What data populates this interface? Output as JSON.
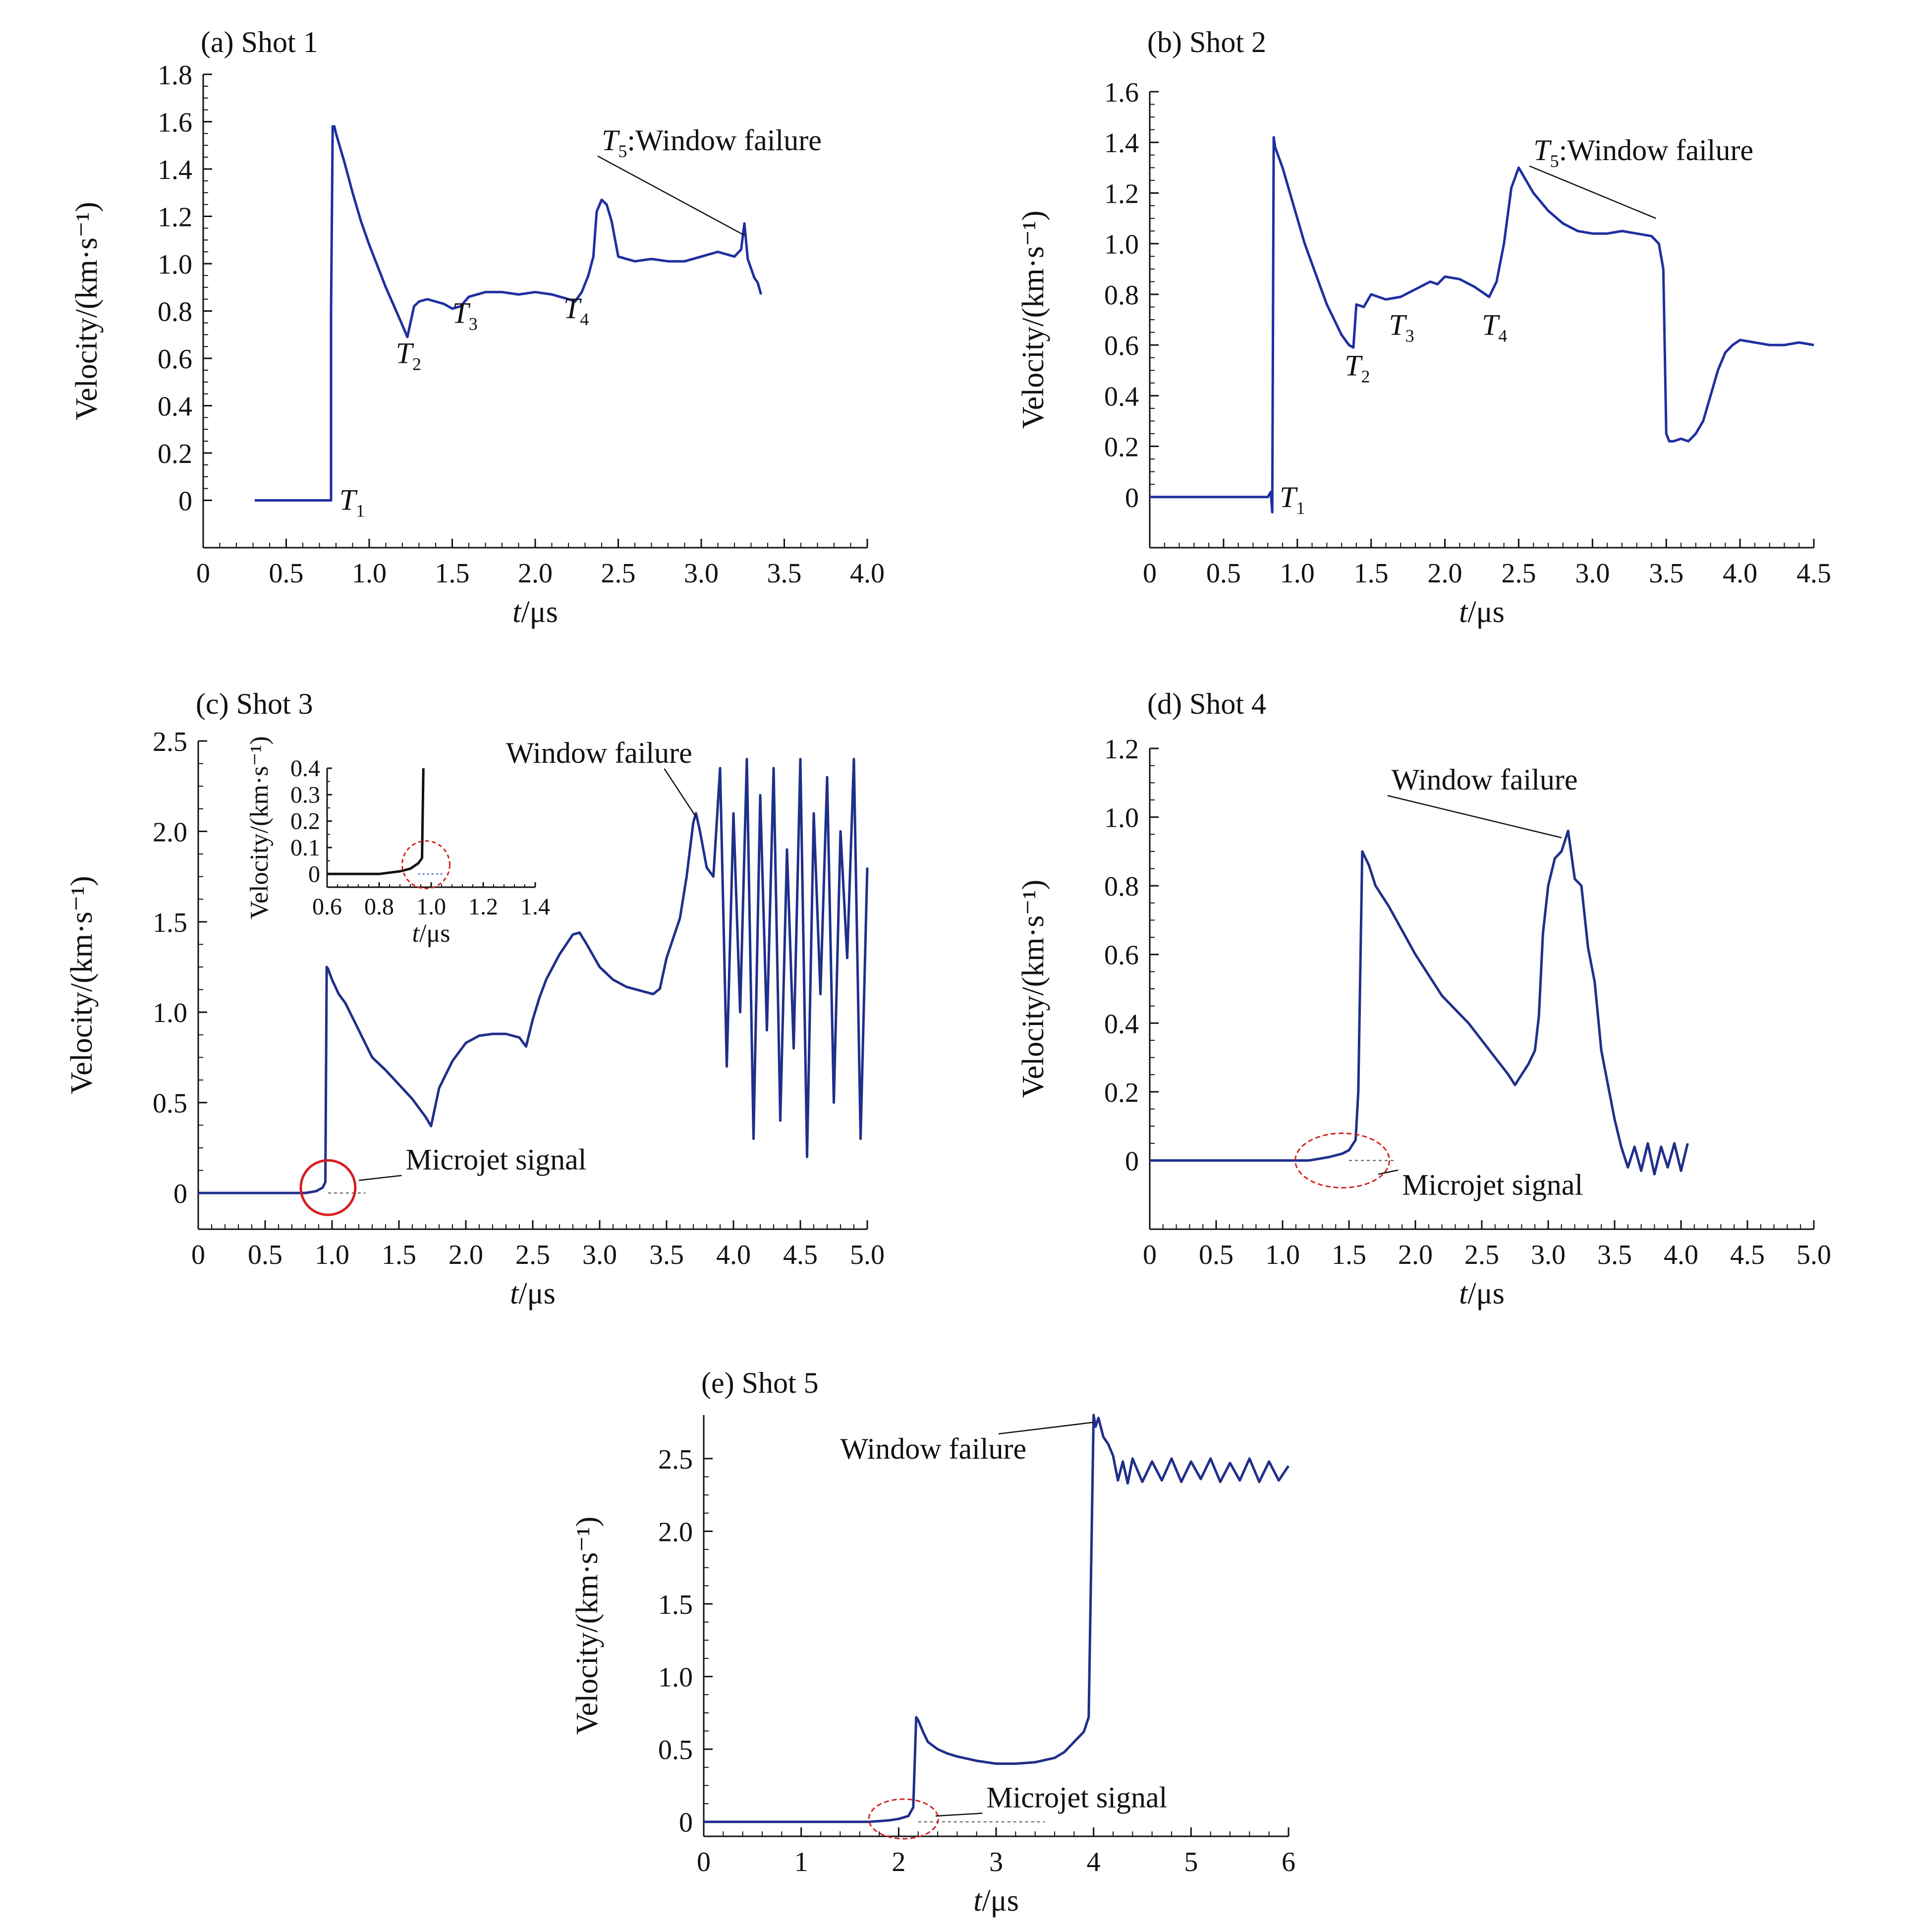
{
  "chart_data": [
    {
      "id": "a",
      "type": "line",
      "title": "(a) Shot 1",
      "xlabel": "t/μs",
      "ylabel": "Velocity/(km·s⁻¹)",
      "xlim": [
        0,
        4.0
      ],
      "ylim": [
        -0.2,
        1.8
      ],
      "xticks": [
        0,
        0.5,
        1.0,
        1.5,
        2.0,
        2.5,
        3.0,
        3.5,
        4.0
      ],
      "xtick_labels": [
        "0",
        "0.5",
        "1.0",
        "1.5",
        "2.0",
        "2.5",
        "3.0",
        "3.5",
        "4.0"
      ],
      "yticks": [
        0,
        0.2,
        0.4,
        0.6,
        0.8,
        1.0,
        1.2,
        1.4,
        1.6,
        1.8
      ],
      "ytick_labels": [
        "0",
        "0.2",
        "0.4",
        "0.6",
        "0.8",
        "1.0",
        "1.2",
        "1.4",
        "1.6",
        "1.8"
      ],
      "color": "#1f2fa0",
      "series": [
        {
          "x": [
            0.31,
            0.77,
            0.77,
            0.78,
            0.79,
            0.8,
            0.85,
            0.9,
            0.95,
            1.0,
            1.05,
            1.1,
            1.15,
            1.2,
            1.23,
            1.27,
            1.3,
            1.35,
            1.4,
            1.45,
            1.5,
            1.55,
            1.6,
            1.7,
            1.8,
            1.9,
            2.0,
            2.1,
            2.2,
            2.24,
            2.28,
            2.32,
            2.35,
            2.37,
            2.4,
            2.43,
            2.46,
            2.5,
            2.6,
            2.7,
            2.8,
            2.9,
            3.0,
            3.1,
            3.2,
            3.24,
            3.26,
            3.28,
            3.3,
            3.32,
            3.34,
            3.36
          ],
          "y": [
            0.0,
            0.0,
            0.8,
            1.58,
            1.58,
            1.55,
            1.43,
            1.3,
            1.18,
            1.08,
            0.99,
            0.9,
            0.82,
            0.74,
            0.69,
            0.82,
            0.84,
            0.85,
            0.84,
            0.83,
            0.81,
            0.82,
            0.86,
            0.88,
            0.88,
            0.87,
            0.88,
            0.87,
            0.85,
            0.84,
            0.88,
            0.95,
            1.03,
            1.22,
            1.27,
            1.25,
            1.18,
            1.03,
            1.01,
            1.02,
            1.01,
            1.01,
            1.03,
            1.05,
            1.03,
            1.06,
            1.17,
            1.02,
            0.98,
            0.94,
            0.92,
            0.87
          ]
        }
      ],
      "annotations": [
        {
          "text": "T",
          "sub": "1",
          "at": [
            0.82,
            -0.04
          ]
        },
        {
          "text": "T",
          "sub": "2",
          "at": [
            1.16,
            0.58
          ]
        },
        {
          "text": "T",
          "sub": "3",
          "at": [
            1.5,
            0.75
          ]
        },
        {
          "text": "T",
          "sub": "4",
          "at": [
            2.17,
            0.77
          ]
        },
        {
          "text": "T",
          "sub": "5",
          "suffix": ":Window failure",
          "at": [
            2.4,
            1.48
          ],
          "arrow_to": [
            3.26,
            1.12
          ]
        }
      ]
    },
    {
      "id": "b",
      "type": "line",
      "title": "(b) Shot 2",
      "xlabel": "t/μs",
      "ylabel": "Velocity/(km·s⁻¹)",
      "xlim": [
        0,
        4.5
      ],
      "ylim": [
        -0.2,
        1.6
      ],
      "xticks": [
        0,
        0.5,
        1.0,
        1.5,
        2.0,
        2.5,
        3.0,
        3.5,
        4.0,
        4.5
      ],
      "xtick_labels": [
        "0",
        "0.5",
        "1.0",
        "1.5",
        "2.0",
        "2.5",
        "3.0",
        "3.5",
        "4.0",
        "4.5"
      ],
      "yticks": [
        0,
        0.2,
        0.4,
        0.6,
        0.8,
        1.0,
        1.2,
        1.4,
        1.6
      ],
      "ytick_labels": [
        "0",
        "0.2",
        "0.4",
        "0.6",
        "0.8",
        "1.0",
        "1.2",
        "1.4",
        "1.6"
      ],
      "color": "#1f2fa0",
      "series": [
        {
          "x": [
            0.0,
            0.8,
            0.82,
            0.83,
            0.84,
            0.85,
            0.9,
            0.95,
            1.0,
            1.05,
            1.1,
            1.15,
            1.2,
            1.25,
            1.3,
            1.35,
            1.38,
            1.4,
            1.45,
            1.5,
            1.6,
            1.7,
            1.8,
            1.9,
            1.95,
            2.0,
            2.1,
            2.2,
            2.3,
            2.35,
            2.4,
            2.45,
            2.5,
            2.55,
            2.6,
            2.7,
            2.8,
            2.9,
            3.0,
            3.1,
            3.2,
            3.3,
            3.4,
            3.45,
            3.48,
            3.5,
            3.52,
            3.55,
            3.6,
            3.65,
            3.7,
            3.75,
            3.8,
            3.85,
            3.9,
            3.95,
            4.0,
            4.1,
            4.2,
            4.3,
            4.4,
            4.5
          ],
          "y": [
            0.0,
            0.0,
            0.02,
            -0.06,
            1.42,
            1.38,
            1.3,
            1.2,
            1.1,
            1.0,
            0.92,
            0.84,
            0.76,
            0.7,
            0.64,
            0.6,
            0.59,
            0.76,
            0.75,
            0.8,
            0.78,
            0.79,
            0.82,
            0.85,
            0.84,
            0.87,
            0.86,
            0.83,
            0.79,
            0.85,
            1.0,
            1.22,
            1.3,
            1.25,
            1.2,
            1.13,
            1.08,
            1.05,
            1.04,
            1.04,
            1.05,
            1.04,
            1.03,
            1.0,
            0.9,
            0.25,
            0.22,
            0.22,
            0.23,
            0.22,
            0.25,
            0.3,
            0.4,
            0.5,
            0.57,
            0.6,
            0.62,
            0.61,
            0.6,
            0.6,
            0.61,
            0.6
          ]
        }
      ],
      "annotations": [
        {
          "text": "T",
          "sub": "1",
          "at": [
            0.88,
            -0.04
          ]
        },
        {
          "text": "T",
          "sub": "2",
          "at": [
            1.32,
            0.48
          ]
        },
        {
          "text": "T",
          "sub": "3",
          "at": [
            1.62,
            0.64
          ]
        },
        {
          "text": "T",
          "sub": "4",
          "at": [
            2.25,
            0.64
          ]
        },
        {
          "text": "T",
          "sub": "5",
          "suffix": ":Window failure",
          "at": [
            2.6,
            1.33
          ],
          "arrow_to": [
            3.43,
            1.1
          ]
        }
      ]
    },
    {
      "id": "c",
      "type": "line",
      "title": "(c) Shot 3",
      "xlabel": "t/μs",
      "ylabel": "Velocity/(km·s⁻¹)",
      "xlim": [
        0,
        5.0
      ],
      "ylim": [
        -0.2,
        2.5
      ],
      "xticks": [
        0,
        0.5,
        1.0,
        1.5,
        2.0,
        2.5,
        3.0,
        3.5,
        4.0,
        4.5,
        5.0
      ],
      "xtick_labels": [
        "0",
        "0.5",
        "1.0",
        "1.5",
        "2.0",
        "2.5",
        "3.0",
        "3.5",
        "4.0",
        "4.5",
        "5.0"
      ],
      "yticks": [
        0,
        0.5,
        1.0,
        1.5,
        2.0,
        2.5
      ],
      "ytick_labels": [
        "0",
        "0.5",
        "1.0",
        "1.5",
        "2.0",
        "2.5"
      ],
      "color": "#1f2f8a",
      "series": [
        {
          "x": [
            0.0,
            0.8,
            0.88,
            0.93,
            0.95,
            0.96,
            0.97,
            1.0,
            1.05,
            1.1,
            1.2,
            1.3,
            1.4,
            1.5,
            1.6,
            1.7,
            1.74,
            1.8,
            1.9,
            2.0,
            2.1,
            2.2,
            2.3,
            2.4,
            2.45,
            2.5,
            2.55,
            2.6,
            2.7,
            2.8,
            2.85,
            2.9,
            3.0,
            3.1,
            3.2,
            3.3,
            3.4,
            3.45,
            3.5,
            3.6,
            3.65,
            3.7,
            3.72,
            3.75,
            3.8,
            3.85,
            3.9,
            3.95,
            4.0,
            4.05,
            4.1,
            4.15,
            4.2,
            4.25,
            4.3,
            4.35,
            4.4,
            4.45,
            4.5,
            4.55,
            4.6,
            4.65,
            4.7,
            4.75,
            4.8,
            4.85,
            4.9,
            4.95,
            5.0
          ],
          "y": [
            0.0,
            0.0,
            0.01,
            0.03,
            0.06,
            1.25,
            1.24,
            1.18,
            1.1,
            1.05,
            0.9,
            0.75,
            0.68,
            0.6,
            0.52,
            0.42,
            0.37,
            0.58,
            0.73,
            0.83,
            0.87,
            0.88,
            0.88,
            0.86,
            0.81,
            0.96,
            1.08,
            1.18,
            1.32,
            1.43,
            1.44,
            1.38,
            1.25,
            1.18,
            1.14,
            1.12,
            1.1,
            1.13,
            1.3,
            1.52,
            1.75,
            2.05,
            2.1,
            2.0,
            1.8,
            1.75,
            2.35,
            0.7,
            2.1,
            1.0,
            2.4,
            0.3,
            2.2,
            0.9,
            2.35,
            0.4,
            1.9,
            0.8,
            2.4,
            0.2,
            2.1,
            1.1,
            2.3,
            0.5,
            2.0,
            1.3,
            2.4,
            0.3,
            1.8
          ]
        }
      ],
      "annotations": [
        {
          "text": "Window failure",
          "at": [
            2.3,
            2.38
          ],
          "arrow_to": [
            3.72,
            2.08
          ]
        },
        {
          "text": "Microjet signal",
          "at": [
            1.55,
            0.13
          ],
          "arrow_to": [
            1.2,
            0.07
          ]
        }
      ],
      "inset": {
        "xlabel": "t/μs",
        "ylabel": "Velocity/(km·s⁻¹)",
        "xlim": [
          0.6,
          1.4
        ],
        "ylim": [
          -0.05,
          0.4
        ],
        "xticks": [
          0.6,
          0.8,
          1.0,
          1.2,
          1.4
        ],
        "xtick_labels": [
          "0.6",
          "0.8",
          "1.0",
          "1.2",
          "1.4"
        ],
        "yticks": [
          0,
          0.1,
          0.2,
          0.3,
          0.4
        ],
        "ytick_labels": [
          "0",
          "0.1",
          "0.2",
          "0.3",
          "0.4"
        ],
        "series": [
          {
            "x": [
              0.6,
              0.8,
              0.88,
              0.92,
              0.95,
              0.965,
              0.97
            ],
            "y": [
              0.0,
              0.0,
              0.01,
              0.02,
              0.04,
              0.06,
              0.4
            ]
          }
        ]
      }
    },
    {
      "id": "d",
      "type": "line",
      "title": "(d) Shot 4",
      "xlabel": "t/μs",
      "ylabel": "Velocity/(km·s⁻¹)",
      "xlim": [
        0,
        5.0
      ],
      "ylim": [
        -0.2,
        1.2
      ],
      "xticks": [
        0,
        0.5,
        1.0,
        1.5,
        2.0,
        2.5,
        3.0,
        3.5,
        4.0,
        4.5,
        5.0
      ],
      "xtick_labels": [
        "0",
        "0.5",
        "1.0",
        "1.5",
        "2.0",
        "2.5",
        "3.0",
        "3.5",
        "4.0",
        "4.5",
        "5.0"
      ],
      "yticks": [
        0,
        0.2,
        0.4,
        0.6,
        0.8,
        1.0,
        1.2
      ],
      "ytick_labels": [
        "0",
        "0.2",
        "0.4",
        "0.6",
        "0.8",
        "1.0",
        "1.2"
      ],
      "color": "#1f2f8a",
      "series": [
        {
          "x": [
            0.0,
            1.2,
            1.35,
            1.45,
            1.5,
            1.55,
            1.57,
            1.6,
            1.65,
            1.7,
            1.8,
            1.9,
            2.0,
            2.1,
            2.2,
            2.3,
            2.4,
            2.5,
            2.6,
            2.7,
            2.75,
            2.8,
            2.85,
            2.9,
            2.93,
            2.96,
            3.0,
            3.05,
            3.1,
            3.15,
            3.2,
            3.25,
            3.3,
            3.35,
            3.4,
            3.45,
            3.5,
            3.55,
            3.6,
            3.65,
            3.7,
            3.75,
            3.8,
            3.85,
            3.9,
            3.95,
            4.0,
            4.05
          ],
          "y": [
            0.0,
            0.0,
            0.01,
            0.02,
            0.03,
            0.06,
            0.2,
            0.9,
            0.86,
            0.8,
            0.74,
            0.67,
            0.6,
            0.54,
            0.48,
            0.44,
            0.4,
            0.35,
            0.3,
            0.25,
            0.22,
            0.25,
            0.28,
            0.32,
            0.42,
            0.66,
            0.8,
            0.88,
            0.9,
            0.96,
            0.82,
            0.8,
            0.62,
            0.52,
            0.32,
            0.22,
            0.12,
            0.04,
            -0.02,
            0.04,
            -0.03,
            0.05,
            -0.04,
            0.04,
            -0.02,
            0.05,
            -0.03,
            0.05
          ]
        }
      ],
      "annotations": [
        {
          "text": "Window failure",
          "at": [
            1.82,
            1.08
          ],
          "arrow_to": [
            3.1,
            0.94
          ]
        },
        {
          "text": "Microjet signal",
          "at": [
            1.9,
            -0.1
          ],
          "arrow_to": [
            1.72,
            -0.04
          ]
        }
      ]
    },
    {
      "id": "e",
      "type": "line",
      "title": "(e) Shot 5",
      "xlabel": "t/μs",
      "ylabel": "Velocity/(km·s⁻¹)",
      "xlim": [
        0,
        6
      ],
      "ylim": [
        -0.1,
        2.8
      ],
      "xticks": [
        0,
        1,
        2,
        3,
        4,
        5,
        6
      ],
      "xtick_labels": [
        "0",
        "1",
        "2",
        "3",
        "4",
        "5",
        "6"
      ],
      "yticks": [
        0,
        0.5,
        1.0,
        1.5,
        2.0,
        2.5
      ],
      "ytick_labels": [
        "0",
        "0.5",
        "1.0",
        "1.5",
        "2.0",
        "2.5"
      ],
      "color": "#1f2f8a",
      "series": [
        {
          "x": [
            0.0,
            1.7,
            1.9,
            2.0,
            2.1,
            2.15,
            2.18,
            2.2,
            2.25,
            2.3,
            2.4,
            2.5,
            2.6,
            2.8,
            3.0,
            3.2,
            3.4,
            3.6,
            3.7,
            3.8,
            3.9,
            3.95,
            4.0,
            4.02,
            4.05,
            4.1,
            4.15,
            4.2,
            4.25,
            4.3,
            4.35,
            4.4,
            4.5,
            4.6,
            4.7,
            4.8,
            4.9,
            5.0,
            5.1,
            5.2,
            5.3,
            5.4,
            5.5,
            5.6,
            5.7,
            5.8,
            5.9,
            6.0
          ],
          "y": [
            0.0,
            0.0,
            0.01,
            0.02,
            0.04,
            0.1,
            0.72,
            0.7,
            0.62,
            0.55,
            0.5,
            0.47,
            0.45,
            0.42,
            0.4,
            0.4,
            0.41,
            0.44,
            0.48,
            0.55,
            0.62,
            0.72,
            2.8,
            2.72,
            2.78,
            2.65,
            2.6,
            2.52,
            2.35,
            2.48,
            2.33,
            2.5,
            2.34,
            2.48,
            2.35,
            2.5,
            2.34,
            2.48,
            2.36,
            2.5,
            2.34,
            2.47,
            2.35,
            2.5,
            2.34,
            2.48,
            2.35,
            2.45
          ]
        }
      ],
      "annotations": [
        {
          "text": "Window failure",
          "at": [
            1.4,
            2.5
          ],
          "arrow_to": [
            4.0,
            2.75
          ]
        },
        {
          "text": "Microjet signal",
          "at": [
            2.9,
            0.1
          ],
          "arrow_to": [
            2.38,
            0.04
          ]
        }
      ]
    }
  ]
}
